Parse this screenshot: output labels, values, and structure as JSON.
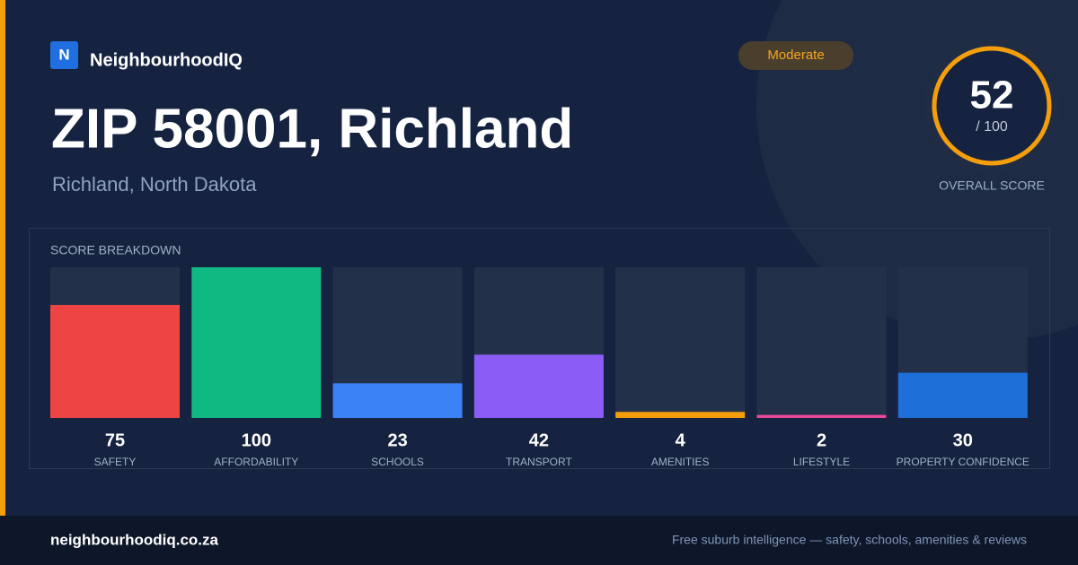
{
  "brand": {
    "logo": "N",
    "name": "NeighbourhoodIQ"
  },
  "header": {
    "title": "ZIP 58001, Richland",
    "subtitle": "Richland, North Dakota",
    "badge": "Moderate"
  },
  "score": {
    "value": 52,
    "out_of": "/ 100",
    "label": "OVERALL SCORE"
  },
  "chart_data": {
    "type": "bar",
    "title": "SCORE BREAKDOWN",
    "categories": [
      "SAFETY",
      "AFFORDABILITY",
      "SCHOOLS",
      "TRANSPORT",
      "AMENITIES",
      "LIFESTYLE",
      "PROPERTY CONFIDENCE"
    ],
    "values": [
      75,
      100,
      23,
      42,
      4,
      2,
      30
    ],
    "colors": [
      "#ef4444",
      "#10b981",
      "#3b82f6",
      "#8b5cf6",
      "#f59e0b",
      "#ec4899",
      "#1f6fd8"
    ],
    "ylim": [
      0,
      100
    ]
  },
  "footer": {
    "site": "neighbourhoodiq.co.za",
    "tagline": "Free suburb intelligence — safety, schools, amenities & reviews"
  }
}
